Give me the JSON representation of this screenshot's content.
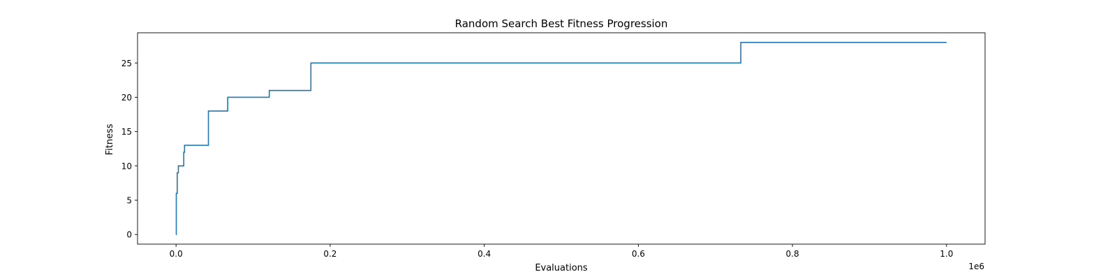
{
  "chart_data": {
    "type": "line",
    "drawstyle": "steps-post",
    "title": "Random Search Best Fitness Progression",
    "xlabel": "Evaluations",
    "ylabel": "Fitness",
    "x_offset_label": "1e6",
    "xlim": [
      -50000,
      1050000
    ],
    "ylim": [
      -1.4,
      29.4
    ],
    "xticks": [
      0,
      200000,
      400000,
      600000,
      800000,
      1000000
    ],
    "xtick_labels": [
      "0.0",
      "0.2",
      "0.4",
      "0.6",
      "0.8",
      "1.0"
    ],
    "yticks": [
      0,
      5,
      10,
      15,
      20,
      25
    ],
    "ytick_labels": [
      "0",
      "5",
      "10",
      "15",
      "20",
      "25"
    ],
    "grid": false,
    "series": [
      {
        "color": "#1f77b4",
        "points": [
          [
            0,
            0
          ],
          [
            300,
            6
          ],
          [
            1500,
            9
          ],
          [
            3000,
            10
          ],
          [
            10000,
            12
          ],
          [
            11000,
            13
          ],
          [
            42000,
            18
          ],
          [
            67000,
            20
          ],
          [
            121000,
            21
          ],
          [
            175000,
            25
          ],
          [
            733000,
            28
          ],
          [
            1000000,
            28
          ]
        ]
      }
    ]
  }
}
